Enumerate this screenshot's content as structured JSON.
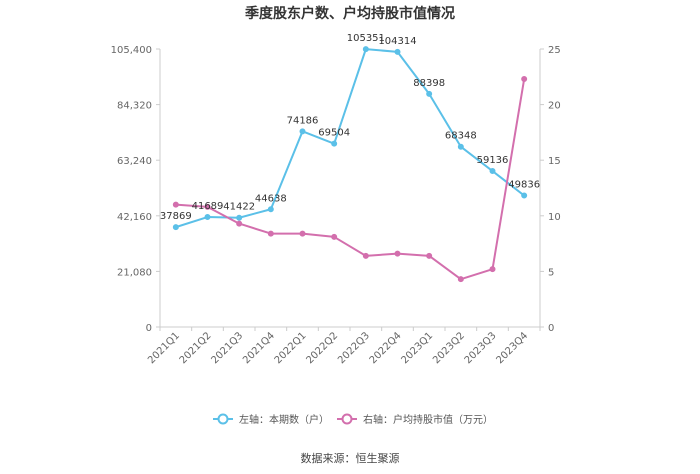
{
  "chart_data": {
    "type": "line",
    "title": "季度股东户数、户均持股市值情况",
    "categories": [
      "2021Q1",
      "2021Q2",
      "2021Q3",
      "2021Q4",
      "2022Q1",
      "2022Q2",
      "2022Q3",
      "2022Q4",
      "2023Q1",
      "2023Q2",
      "2023Q3",
      "2023Q4"
    ],
    "series": [
      {
        "name": "左轴：本期数（户）",
        "axis": "left",
        "color": "#5bc0e8",
        "values": [
          37869,
          41689,
          41422,
          44638,
          74186,
          69504,
          105351,
          104314,
          88398,
          68348,
          59136,
          49836
        ],
        "labels": [
          "37869",
          "41689",
          "41422",
          "44638",
          "74186",
          "69504",
          "105351",
          "104314",
          "88398",
          "68348",
          "59136",
          "49836"
        ]
      },
      {
        "name": "右轴：户均持股市值（万元）",
        "axis": "right",
        "color": "#d36fad",
        "values": [
          11.0,
          10.8,
          9.3,
          8.4,
          8.4,
          8.1,
          6.4,
          6.6,
          6.4,
          4.3,
          5.2,
          22.3
        ]
      }
    ],
    "y_left": {
      "min": 0,
      "max": 105400,
      "ticks": [
        "0",
        "21,080",
        "42,160",
        "63,240",
        "84,320",
        "105,400"
      ]
    },
    "y_right": {
      "min": 0,
      "max": 25,
      "ticks": [
        "0",
        "5",
        "10",
        "15",
        "20",
        "25"
      ]
    },
    "grid": false,
    "legend": "bottom"
  },
  "source": "数据来源：恒生聚源"
}
